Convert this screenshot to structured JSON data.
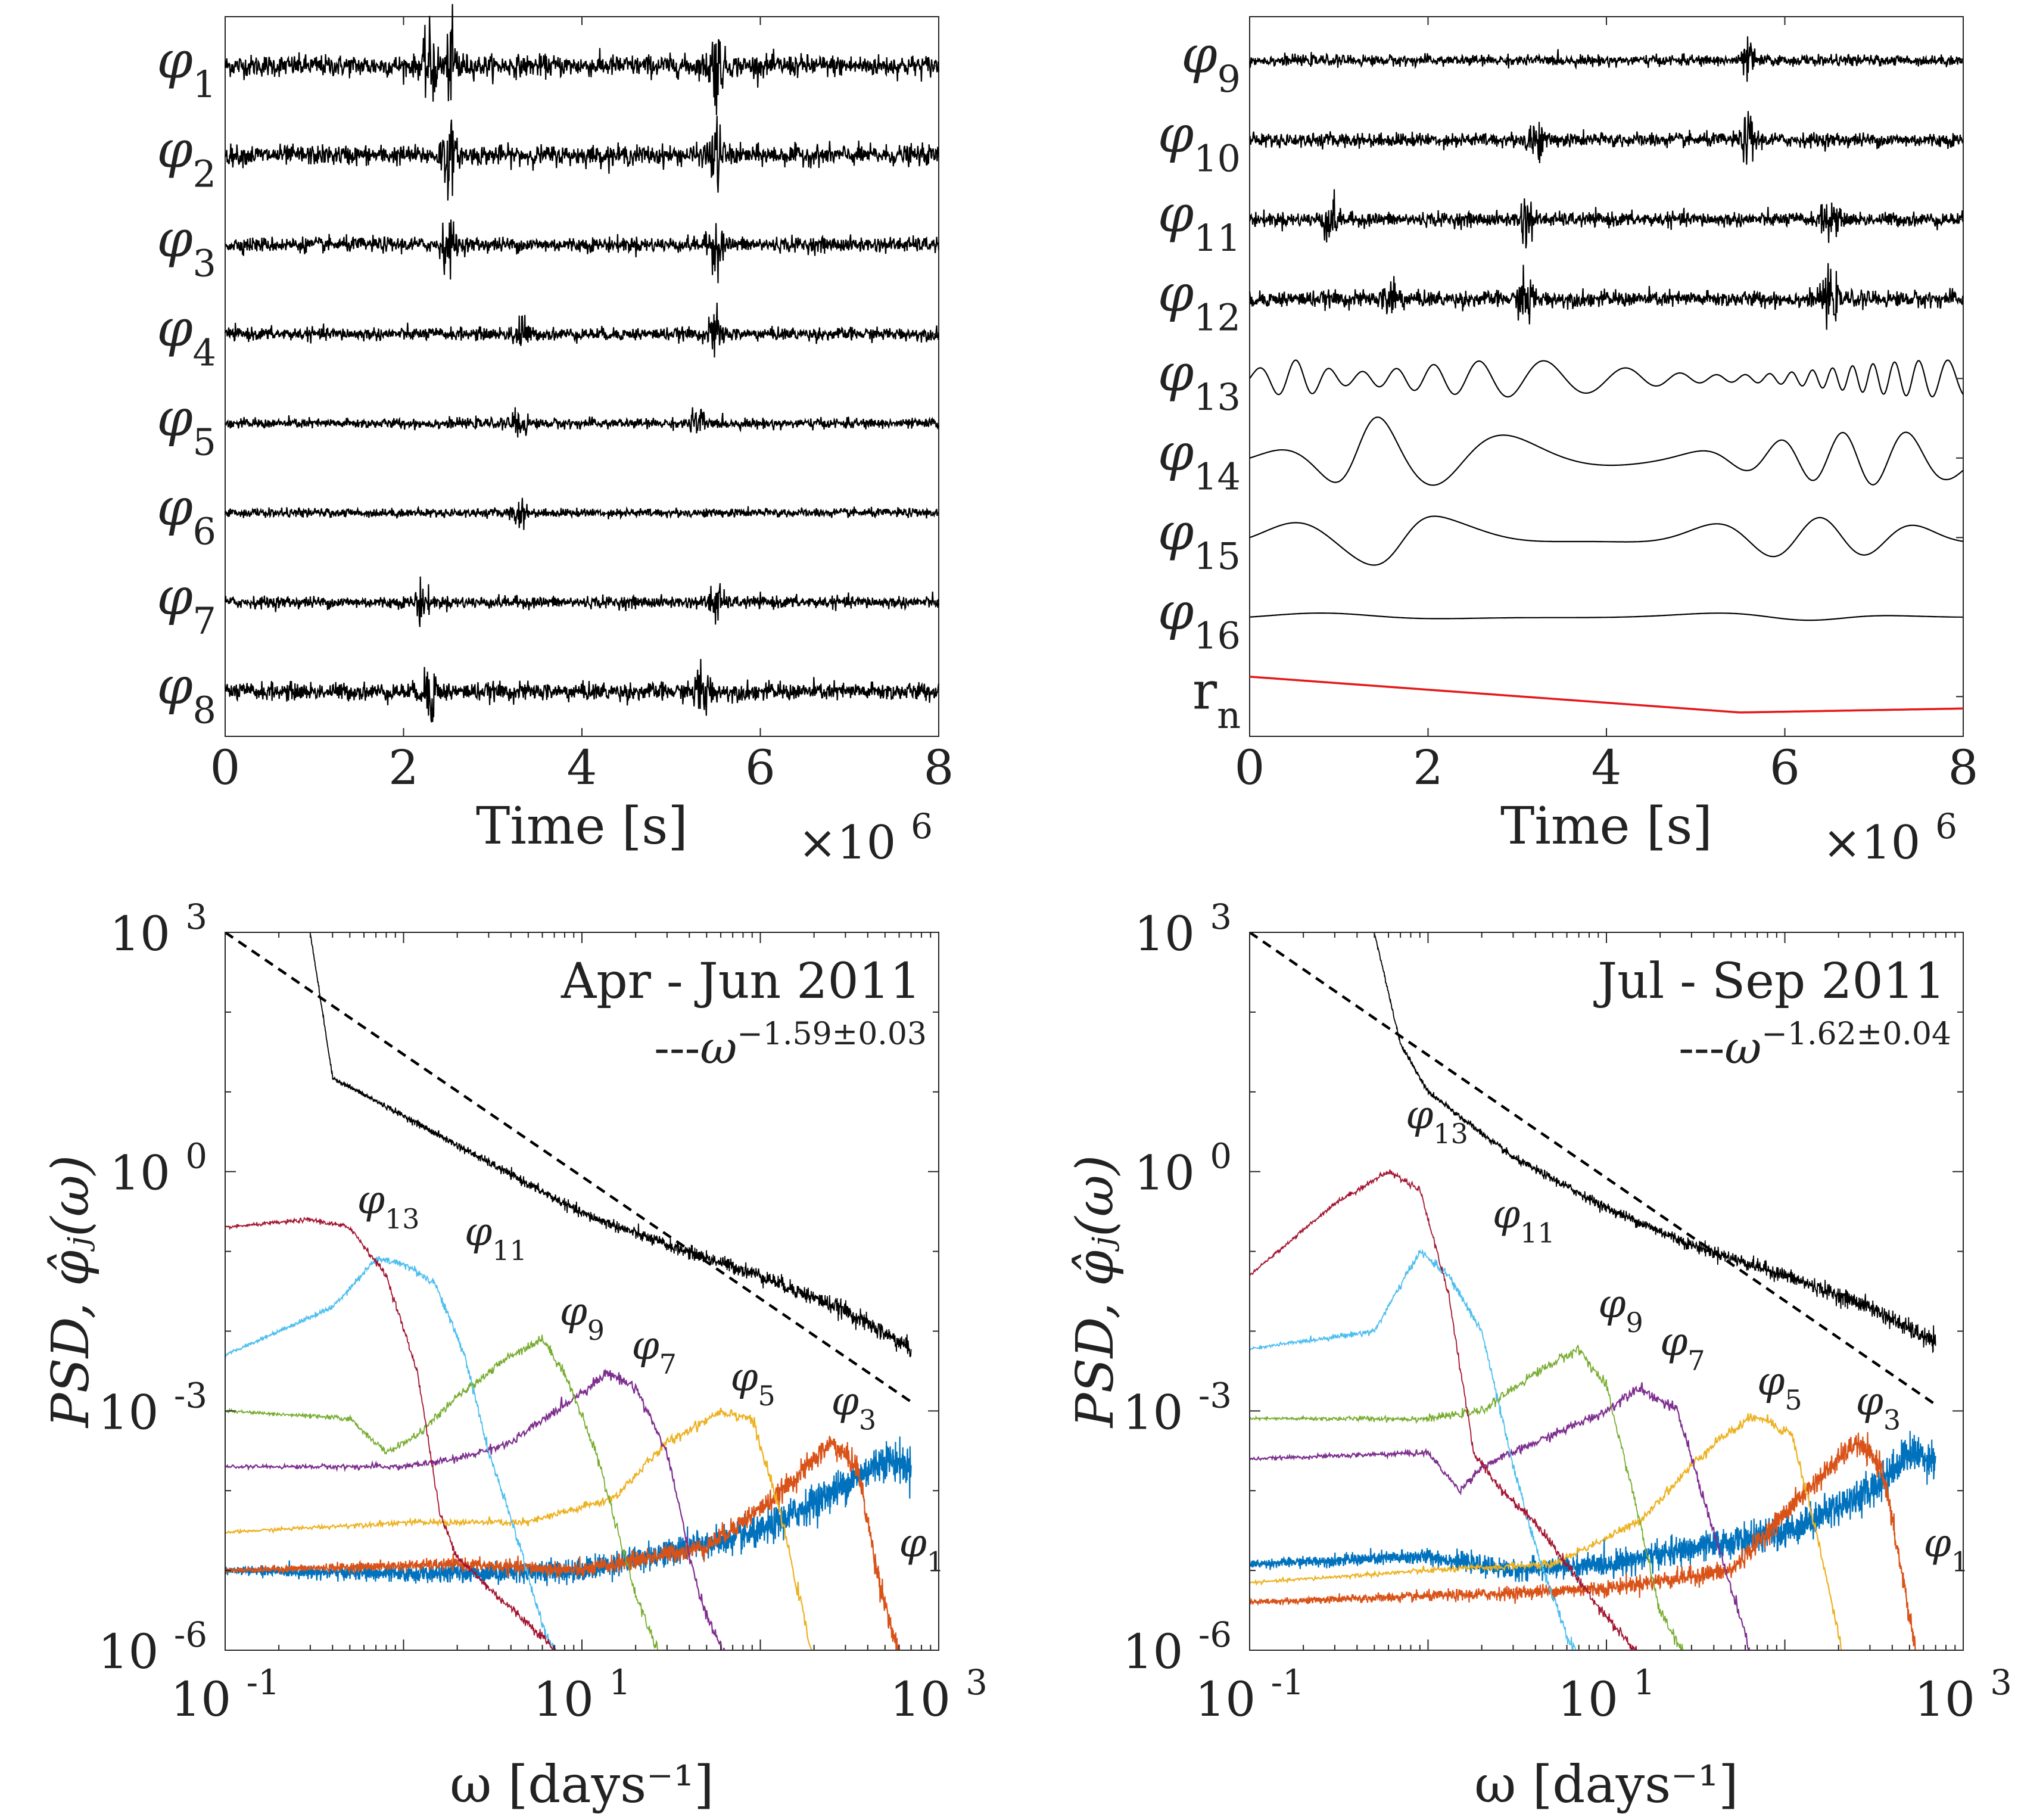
{
  "chart_data": [
    {
      "type": "line",
      "panel": "top-left",
      "title": "",
      "xlabel": "Time [s]",
      "x_exponent_label": "×10",
      "x_exponent": "6",
      "xlim": [
        0,
        8
      ],
      "xticks": [
        "0",
        "2",
        "4",
        "6",
        "8"
      ],
      "series": [
        {
          "name": "φ",
          "sub": "1",
          "bursts": [
            2.3,
            2.55,
            5.5
          ],
          "amplitude": 0.55
        },
        {
          "name": "φ",
          "sub": "2",
          "bursts": [
            2.5,
            5.5
          ],
          "amplitude": 0.5
        },
        {
          "name": "φ",
          "sub": "3",
          "bursts": [
            2.5,
            5.5
          ],
          "amplitude": 0.38
        },
        {
          "name": "φ",
          "sub": "4",
          "bursts": [
            3.3,
            5.5
          ],
          "amplitude": 0.32
        },
        {
          "name": "φ",
          "sub": "5",
          "bursts": [
            3.3,
            5.3
          ],
          "amplitude": 0.25
        },
        {
          "name": "φ",
          "sub": "6",
          "bursts": [
            3.3
          ],
          "amplitude": 0.22
        },
        {
          "name": "φ",
          "sub": "7",
          "bursts": [
            2.2,
            5.5
          ],
          "amplitude": 0.3
        },
        {
          "name": "φ",
          "sub": "8",
          "bursts": [
            2.3,
            5.35
          ],
          "amplitude": 0.45
        }
      ]
    },
    {
      "type": "line",
      "panel": "top-right",
      "title": "",
      "xlabel": "Time [s]",
      "x_exponent_label": "×10",
      "x_exponent": "6",
      "xlim": [
        0,
        8
      ],
      "xticks": [
        "0",
        "2",
        "4",
        "6",
        "8"
      ],
      "series": [
        {
          "name": "φ",
          "sub": "9",
          "bursts": [
            5.6
          ],
          "amplitude": 0.3
        },
        {
          "name": "φ",
          "sub": "10",
          "bursts": [
            3.2,
            5.6
          ],
          "amplitude": 0.4
        },
        {
          "name": "φ",
          "sub": "11",
          "bursts": [
            0.9,
            3.1,
            6.5
          ],
          "amplitude": 0.4
        },
        {
          "name": "φ",
          "sub": "12",
          "bursts": [
            1.6,
            3.1,
            6.5
          ],
          "amplitude": 0.45
        },
        {
          "name": "φ",
          "sub": "13",
          "bursts": [
            0.5
          ],
          "amplitude": 0.55
        },
        {
          "name": "φ",
          "sub": "14",
          "bursts": [
            1.3
          ],
          "amplitude": 0.8
        },
        {
          "name": "φ",
          "sub": "15",
          "bursts": [
            1.7
          ],
          "amplitude": 0.6
        },
        {
          "name": "φ",
          "sub": "16",
          "bursts": [],
          "amplitude": 0.12
        },
        {
          "name": "r",
          "sub": "n",
          "bursts": [],
          "amplitude": 0.0,
          "color": "#e31a1c"
        }
      ]
    },
    {
      "type": "line",
      "panel": "bottom-left",
      "title": "Apr - Jun 2011",
      "fit_label": "ω",
      "fit_exponent": "−1.59±0.03",
      "xlabel": "ω [days⁻¹]",
      "ylabel": "PSD, φ̂ⱼ(ω)",
      "xscale": "log",
      "yscale": "log",
      "xlim": [
        0.1,
        1000
      ],
      "ylim": [
        1e-06,
        1000
      ],
      "xticks": [
        {
          "base": "10",
          "exp": "-1"
        },
        {
          "base": "10",
          "exp": "1"
        },
        {
          "base": "10",
          "exp": "3"
        }
      ],
      "yticks": [
        {
          "base": "10",
          "exp": "-6"
        },
        {
          "base": "10",
          "exp": "-3"
        },
        {
          "base": "10",
          "exp": "0"
        },
        {
          "base": "10",
          "exp": "3"
        }
      ],
      "fit_line": {
        "x": [
          0.1,
          700
        ],
        "y": [
          1000,
          0.0013
        ]
      },
      "psd_total": {
        "x": [
          0.3,
          0.4,
          1,
          3,
          10,
          30,
          100,
          300,
          700
        ],
        "y": [
          1000,
          15,
          5,
          1.3,
          0.3,
          0.12,
          0.05,
          0.018,
          0.006
        ]
      },
      "components": [
        {
          "name": "φ",
          "sub": "13",
          "color": "#a2142f",
          "x": [
            0.1,
            0.3,
            0.5,
            0.8,
            1.2,
            1.6,
            2.0,
            3,
            6,
            10,
            20
          ],
          "y": [
            0.2,
            0.25,
            0.2,
            0.05,
            0.003,
            5e-05,
            1.5e-05,
            6e-06,
            1.5e-06,
            4e-07,
            1e-07
          ],
          "label_x": 0.55,
          "label_y": 0.3
        },
        {
          "name": "φ",
          "sub": "11",
          "color": "#4dbeee",
          "x": [
            0.1,
            0.4,
            0.7,
            1.0,
            1.5,
            2.2,
            3,
            4.5,
            6,
            10
          ],
          "y": [
            0.005,
            0.02,
            0.08,
            0.07,
            0.04,
            0.005,
            0.0003,
            2e-05,
            2e-06,
            2e-07
          ],
          "label_x": 2.2,
          "label_y": 0.12
        },
        {
          "name": "φ",
          "sub": "9",
          "color": "#77ac30",
          "x": [
            0.1,
            0.5,
            0.8,
            1.2,
            2,
            4,
            6,
            8,
            12,
            20,
            30
          ],
          "y": [
            0.001,
            0.0008,
            0.0003,
            0.0005,
            0.0015,
            0.005,
            0.008,
            0.003,
            0.0003,
            5e-06,
            5e-07
          ],
          "label_x": 7.5,
          "label_y": 0.012
        },
        {
          "name": "φ",
          "sub": "7",
          "color": "#7e2f8e",
          "x": [
            0.1,
            1,
            2,
            4,
            8,
            14,
            20,
            30,
            45,
            70
          ],
          "y": [
            0.0002,
            0.0002,
            0.00025,
            0.0004,
            0.0012,
            0.003,
            0.002,
            0.0003,
            5e-06,
            5e-07
          ],
          "label_x": 19,
          "label_y": 0.0045
        },
        {
          "name": "φ",
          "sub": "5",
          "color": "#edb120",
          "x": [
            0.1,
            1,
            5,
            15,
            30,
            60,
            90,
            130,
            200
          ],
          "y": [
            3e-05,
            4e-05,
            4e-05,
            8e-05,
            0.0004,
            0.001,
            0.0008,
            5e-05,
            7e-07
          ],
          "label_x": 68,
          "label_y": 0.0018
        },
        {
          "name": "φ",
          "sub": "3",
          "color": "#d95319",
          "x": [
            0.1,
            2,
            10,
            50,
            120,
            250,
            350,
            450,
            600
          ],
          "y": [
            1e-05,
            1.2e-05,
            1e-05,
            2e-05,
            8e-05,
            0.0004,
            0.0002,
            1e-05,
            8e-07
          ],
          "label_x": 250,
          "label_y": 0.0009
        },
        {
          "name": "φ",
          "sub": "1",
          "color": "#0072bd",
          "x": [
            0.1,
            1,
            10,
            100,
            300,
            500,
            700
          ],
          "y": [
            1e-05,
            9e-06,
            1e-05,
            3e-05,
            0.00012,
            0.00025,
            0.0002
          ],
          "label_x": 600,
          "label_y": 1.5e-05
        }
      ]
    },
    {
      "type": "line",
      "panel": "bottom-right",
      "title": "Jul - Sep 2011",
      "fit_label": "ω",
      "fit_exponent": "−1.62±0.04",
      "xlabel": "ω [days⁻¹]",
      "ylabel": "PSD, φ̂ⱼ(ω)",
      "xscale": "log",
      "yscale": "log",
      "xlim": [
        0.1,
        1000
      ],
      "ylim": [
        1e-06,
        1000
      ],
      "xticks": [
        {
          "base": "10",
          "exp": "-1"
        },
        {
          "base": "10",
          "exp": "1"
        },
        {
          "base": "10",
          "exp": "3"
        }
      ],
      "yticks": [
        {
          "base": "10",
          "exp": "-6"
        },
        {
          "base": "10",
          "exp": "-3"
        },
        {
          "base": "10",
          "exp": "0"
        },
        {
          "base": "10",
          "exp": "3"
        }
      ],
      "fit_line": {
        "x": [
          0.1,
          700
        ],
        "y": [
          1000,
          0.0012
        ]
      },
      "psd_total": {
        "x": [
          0.5,
          0.7,
          1,
          3,
          10,
          30,
          100,
          300,
          700
        ],
        "y": [
          1000,
          40,
          10,
          1.5,
          0.35,
          0.12,
          0.05,
          0.02,
          0.007
        ]
      },
      "components": [
        {
          "name": "φ",
          "sub": "13",
          "color": "#a2142f",
          "x": [
            0.1,
            0.3,
            0.6,
            0.9,
            1.3,
            1.8,
            2.6,
            4,
            8,
            20
          ],
          "y": [
            0.05,
            0.4,
            1.0,
            0.6,
            0.03,
            0.0003,
            0.0001,
            4e-05,
            5e-06,
            4e-07
          ],
          "label_x": 0.75,
          "label_y": 3.5
        },
        {
          "name": "φ",
          "sub": "11",
          "color": "#4dbeee",
          "x": [
            0.1,
            0.5,
            0.9,
            1.3,
            2,
            3,
            4,
            6,
            10
          ],
          "y": [
            0.006,
            0.01,
            0.1,
            0.05,
            0.01,
            0.0002,
            2e-05,
            1.5e-06,
            2e-07
          ],
          "label_x": 2.3,
          "label_y": 0.2
        },
        {
          "name": "φ",
          "sub": "9",
          "color": "#77ac30",
          "x": [
            0.1,
            1,
            2,
            4,
            7,
            10,
            14,
            20,
            30
          ],
          "y": [
            0.0008,
            0.0008,
            0.001,
            0.003,
            0.006,
            0.002,
            0.0001,
            3e-06,
            6e-07
          ],
          "label_x": 9,
          "label_y": 0.015
        },
        {
          "name": "φ",
          "sub": "7",
          "color": "#7e2f8e",
          "x": [
            0.1,
            1,
            1.5,
            2,
            5,
            10,
            15,
            25,
            40,
            70
          ],
          "y": [
            0.00025,
            0.0003,
            0.0001,
            0.0002,
            0.0005,
            0.001,
            0.002,
            0.001,
            3e-05,
            5e-07
          ],
          "label_x": 20,
          "label_y": 0.005
        },
        {
          "name": "φ",
          "sub": "5",
          "color": "#edb120",
          "x": [
            0.1,
            1,
            5,
            15,
            40,
            70,
            110,
            150,
            220
          ],
          "y": [
            7e-06,
            1e-05,
            1.2e-05,
            4e-05,
            0.0004,
            0.0009,
            0.0005,
            3e-05,
            6e-07
          ],
          "label_x": 70,
          "label_y": 0.0016
        },
        {
          "name": "φ",
          "sub": "3",
          "color": "#d95319",
          "x": [
            0.1,
            2,
            10,
            50,
            120,
            250,
            350,
            450,
            550
          ],
          "y": [
            4e-06,
            5e-06,
            6e-06,
            1e-05,
            8e-05,
            0.0004,
            0.0002,
            1e-05,
            8e-07
          ],
          "label_x": 250,
          "label_y": 0.0009
        },
        {
          "name": "φ",
          "sub": "1",
          "color": "#0072bd",
          "x": [
            0.1,
            1,
            3,
            10,
            100,
            300,
            500,
            700
          ],
          "y": [
            1.2e-05,
            1.5e-05,
            1e-05,
            1.2e-05,
            3e-05,
            0.0001,
            0.0003,
            0.00025
          ],
          "label_x": 600,
          "label_y": 1.5e-05
        }
      ]
    }
  ]
}
